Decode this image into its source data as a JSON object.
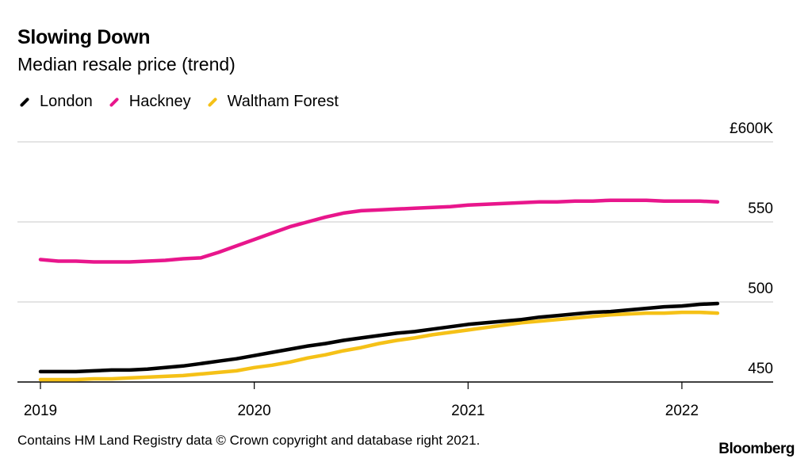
{
  "header": {
    "title": "Slowing Down",
    "subtitle": "Median resale price (trend)"
  },
  "legend": [
    {
      "name": "London",
      "color": "#000000"
    },
    {
      "name": "Hackney",
      "color": "#e8168c"
    },
    {
      "name": "Waltham Forest",
      "color": "#f5c117"
    }
  ],
  "footer": {
    "source": "Contains HM Land Registry data © Crown copyright and database right 2021.",
    "brand": "Bloomberg"
  },
  "chart_data": {
    "type": "line",
    "title": "Slowing Down",
    "subtitle": "Median resale price (trend)",
    "xlabel": "",
    "ylabel": "",
    "y_unit": "£K",
    "ylim": [
      450,
      600
    ],
    "yticks": [
      450,
      500,
      550,
      600
    ],
    "ytick_labels": [
      "450",
      "500",
      "550",
      "£600K"
    ],
    "yaxis_position": "right",
    "xticks": [
      "2019",
      "2020",
      "2021",
      "2022"
    ],
    "x_start": "2019-01",
    "x_end": "2022-03",
    "grid": true,
    "legend_position": "top-left",
    "x": [
      "2019-01",
      "2019-02",
      "2019-03",
      "2019-04",
      "2019-05",
      "2019-06",
      "2019-07",
      "2019-08",
      "2019-09",
      "2019-10",
      "2019-11",
      "2019-12",
      "2020-01",
      "2020-02",
      "2020-03",
      "2020-04",
      "2020-05",
      "2020-06",
      "2020-07",
      "2020-08",
      "2020-09",
      "2020-10",
      "2020-11",
      "2020-12",
      "2021-01",
      "2021-02",
      "2021-03",
      "2021-04",
      "2021-05",
      "2021-06",
      "2021-07",
      "2021-08",
      "2021-09",
      "2021-10",
      "2021-11",
      "2021-12",
      "2022-01",
      "2022-02",
      "2022-03"
    ],
    "series": [
      {
        "name": "London",
        "color": "#000000",
        "values": [
          456.5,
          456.5,
          456.5,
          457,
          457.5,
          457.5,
          458,
          459,
          460,
          461.5,
          463,
          464.5,
          466.5,
          468.5,
          470.5,
          472.5,
          474,
          476,
          477.5,
          479,
          480.5,
          481.5,
          483,
          484.5,
          486,
          487,
          488,
          489,
          490.5,
          491.5,
          492.5,
          493.5,
          494,
          495,
          496,
          497,
          497.5,
          498.5,
          499
        ]
      },
      {
        "name": "Hackney",
        "color": "#e8168c",
        "values": [
          526.5,
          525.5,
          525.5,
          525,
          525,
          525,
          525.5,
          526,
          527,
          527.5,
          531,
          535,
          539,
          543,
          547,
          550,
          553,
          555.5,
          557,
          557.5,
          558,
          558.5,
          559,
          559.5,
          560.5,
          561,
          561.5,
          562,
          562.5,
          562.5,
          563,
          563,
          563.5,
          563.5,
          563.5,
          563,
          563,
          563,
          562.5
        ]
      },
      {
        "name": "Waltham Forest",
        "color": "#f5c117",
        "values": [
          451.5,
          451.5,
          451.5,
          452,
          452,
          452.5,
          453,
          453.5,
          454,
          455,
          456,
          457,
          459,
          460.5,
          462.5,
          465,
          467,
          469.5,
          471.5,
          474,
          476,
          477.5,
          479.5,
          481,
          482.5,
          484,
          485.5,
          487,
          488,
          489,
          490,
          491,
          492,
          492.5,
          493,
          493,
          493.5,
          493.5,
          493
        ]
      }
    ]
  }
}
